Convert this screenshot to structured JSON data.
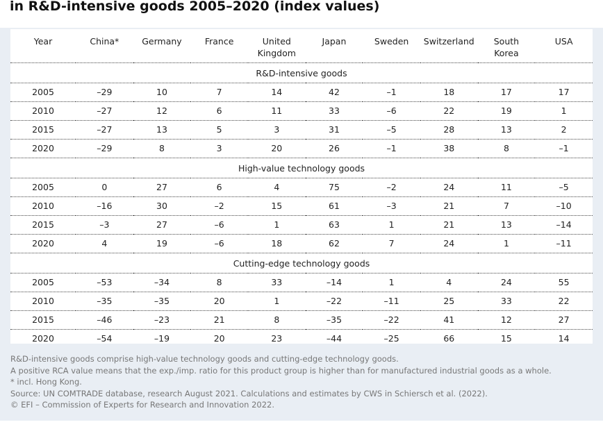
{
  "header": {
    "title": "in R&D-intensive goods 2005–2020 (index values)"
  },
  "table": {
    "columns": [
      "Year",
      "China*",
      "Germany",
      "France",
      "United Kingdom",
      "Japan",
      "Sweden",
      "Switzerland",
      "South Korea",
      "USA"
    ],
    "sections": [
      {
        "title": "R&D-intensive goods",
        "rows": [
          [
            "2005",
            "–29",
            "10",
            "7",
            "14",
            "42",
            "–1",
            "18",
            "17",
            "17"
          ],
          [
            "2010",
            "–27",
            "12",
            "6",
            "11",
            "33",
            "–6",
            "22",
            "19",
            "1"
          ],
          [
            "2015",
            "–27",
            "13",
            "5",
            "3",
            "31",
            "–5",
            "28",
            "13",
            "2"
          ],
          [
            "2020",
            "–29",
            "8",
            "3",
            "20",
            "26",
            "–1",
            "38",
            "8",
            "–1"
          ]
        ]
      },
      {
        "title": "High-value technology goods",
        "rows": [
          [
            "2005",
            "0",
            "27",
            "6",
            "4",
            "75",
            "–2",
            "24",
            "11",
            "–5"
          ],
          [
            "2010",
            "–16",
            "30",
            "–2",
            "15",
            "61",
            "–3",
            "21",
            "7",
            "–10"
          ],
          [
            "2015",
            "–3",
            "27",
            "–6",
            "1",
            "63",
            "1",
            "21",
            "13",
            "–14"
          ],
          [
            "2020",
            "4",
            "19",
            "–6",
            "18",
            "62",
            "7",
            "24",
            "1",
            "–11"
          ]
        ]
      },
      {
        "title": "Cutting-edge technology goods",
        "rows": [
          [
            "2005",
            "–53",
            "–34",
            "8",
            "33",
            "–14",
            "1",
            "4",
            "24",
            "55"
          ],
          [
            "2010",
            "–35",
            "–35",
            "20",
            "1",
            "–22",
            "–11",
            "25",
            "33",
            "22"
          ],
          [
            "2015",
            "–46",
            "–23",
            "21",
            "8",
            "–35",
            "–22",
            "41",
            "12",
            "27"
          ],
          [
            "2020",
            "–54",
            "–19",
            "20",
            "23",
            "–44",
            "–25",
            "66",
            "15",
            "14"
          ]
        ]
      }
    ]
  },
  "notes": [
    "R&D-intensive goods comprise high-value technology goods and cutting-edge technology goods.",
    "A positive RCA value means that the exp./imp. ratio for this product group is higher than for manufactured industrial goods as a whole.",
    "* incl. Hong Kong.",
    "Source: UN COMTRADE database, research August 2021. Calculations and estimates by CWS in Schiersch et al. (2022).",
    "© EFI – Commission of Experts for Research and Innovation 2022."
  ]
}
